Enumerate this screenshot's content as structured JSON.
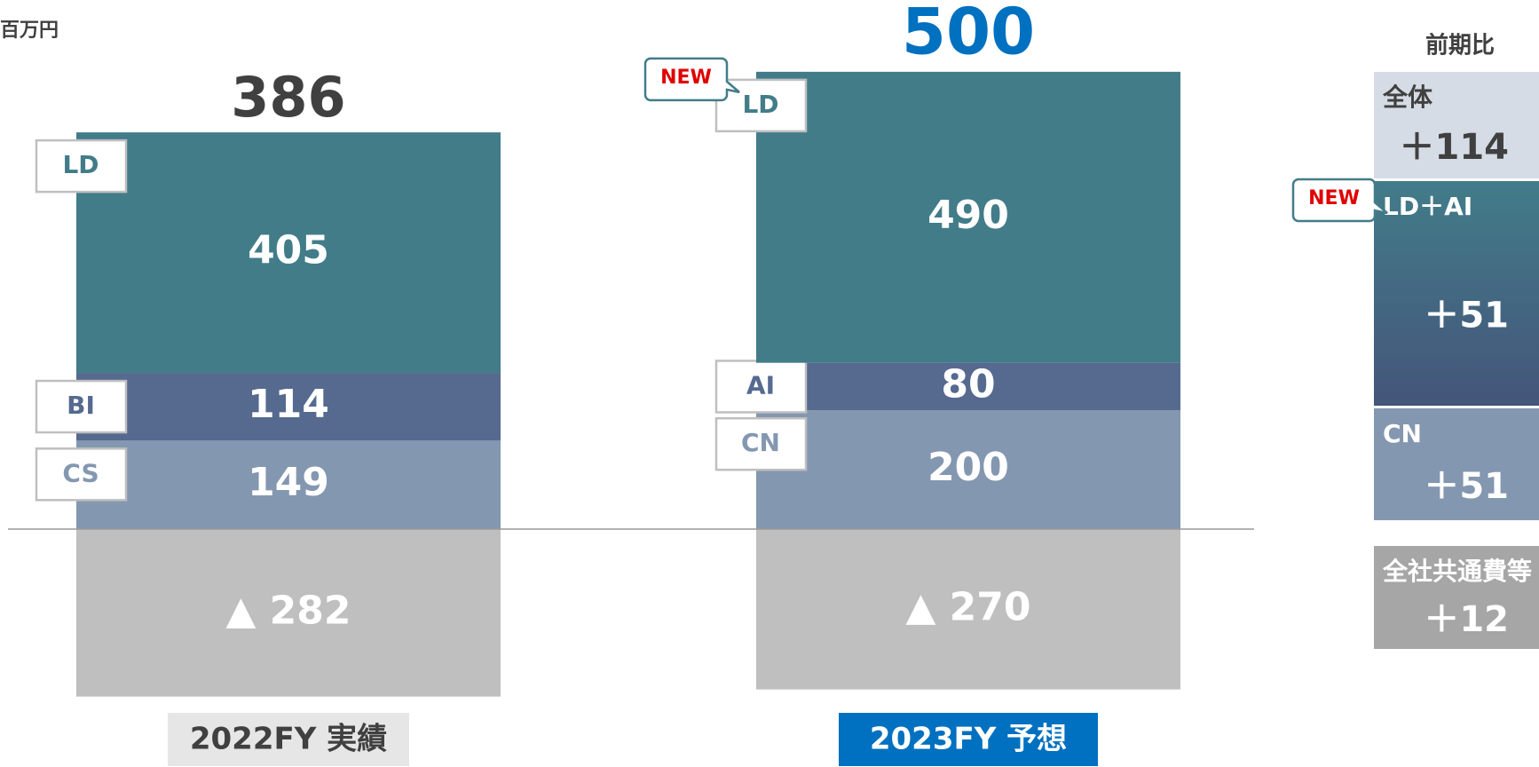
{
  "chart_data": {
    "type": "stacked_bar",
    "unit": "百万円",
    "bars": [
      {
        "category": "2022FY 実績",
        "category_fill": "#e7e6e6",
        "category_text_color": "#404040",
        "total": 386,
        "total_color": "#404040",
        "segments": [
          {
            "name": "CS",
            "value": 149,
            "color": "#8497b0"
          },
          {
            "name": "BI",
            "value": 114,
            "color": "#56698f"
          },
          {
            "name": "LD",
            "value": 405,
            "color": "#427c89"
          }
        ],
        "negative": {
          "value": -282,
          "value_label": "▲ 282",
          "color": "#bfbfbf"
        }
      },
      {
        "category": "2023FY 予想",
        "category_fill": "#0070c0",
        "category_text_color": "#ffffff",
        "total": 500,
        "total_color": "#0070c0",
        "segments": [
          {
            "name": "CN",
            "value": 200,
            "color": "#8497b0"
          },
          {
            "name": "AI",
            "value": 80,
            "color": "#56698f"
          },
          {
            "name": "LD",
            "value": 490,
            "color": "#427c89",
            "badge": "NEW"
          }
        ],
        "negative": {
          "value": -270,
          "value_label": "▲ 270",
          "color": "#bfbfbf"
        }
      }
    ],
    "changes": {
      "title": "前期比",
      "items": [
        {
          "name": "全体",
          "value": 114,
          "value_label": "＋114",
          "colors": [
            "#d6dce5"
          ],
          "text_color": "#404040"
        },
        {
          "name": "LD＋AI",
          "value": 51,
          "value_label": "＋51",
          "colors": [
            "#427c89",
            "#44557a"
          ],
          "text_color": "#ffffff",
          "badge": "NEW"
        },
        {
          "name": "CN",
          "value": 51,
          "value_label": "＋51",
          "colors": [
            "#8497b0"
          ],
          "text_color": "#ffffff"
        },
        {
          "name": "全社共通費等",
          "value": 12,
          "value_label": "＋12",
          "colors": [
            "#a6a6a6"
          ],
          "text_color": "#ffffff"
        }
      ]
    }
  }
}
